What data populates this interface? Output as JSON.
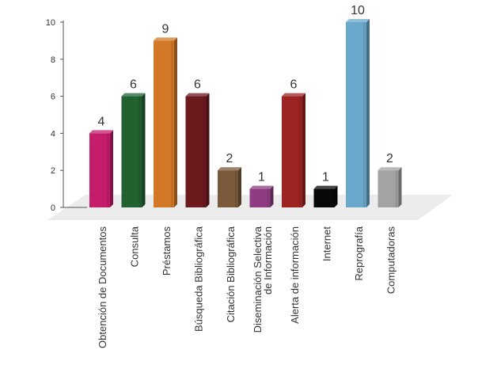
{
  "chart_data": {
    "type": "bar",
    "categories": [
      "Obtención de Documentos",
      "Consulta",
      "Préstamos",
      "Búsqueda Bibliográfica",
      "Citación Bibliográfica",
      "Diseminación Selectiva de Información",
      "Alerta de información",
      "Internet",
      "Reprografía",
      "Computadoras"
    ],
    "values": [
      4,
      6,
      9,
      6,
      2,
      1,
      6,
      1,
      10,
      2
    ],
    "colors": [
      "#c51c6c",
      "#226130",
      "#d37826",
      "#6d1a1f",
      "#7a5a3a",
      "#8f3c83",
      "#9c2422",
      "#080808",
      "#6aa8cc",
      "#a3a3a3"
    ],
    "ylim": [
      0,
      10
    ],
    "yticks": [
      "0",
      "2",
      "4",
      "6",
      "8",
      "10"
    ],
    "title": "",
    "xlabel": "",
    "ylabel": "",
    "grid": false,
    "style": "3d-bars"
  }
}
